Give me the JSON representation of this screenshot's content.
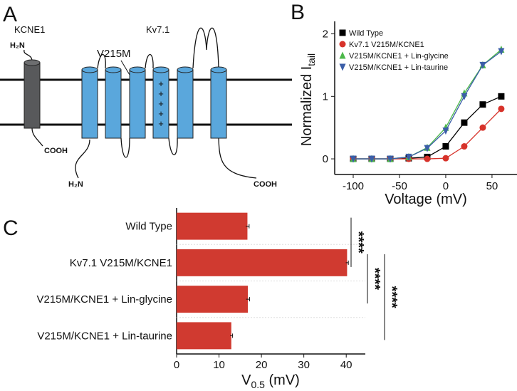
{
  "panels": [
    "A",
    "B",
    "C"
  ],
  "diagram": {
    "subunits": [
      "KCNE1",
      "Kv7.1"
    ],
    "mutation": "V215M",
    "n_terminus": [
      "H₂N",
      "H₂N"
    ],
    "c_terminus": [
      "COOH",
      "COOH"
    ],
    "charges": [
      "+",
      "+",
      "+",
      "+",
      "+"
    ]
  },
  "chart_data": [
    {
      "type": "line",
      "x_label": "Voltage (mV)",
      "y_label": "Normalized I",
      "y_label_sub": "tail",
      "x": [
        -100,
        -80,
        -60,
        -40,
        -20,
        0,
        20,
        40,
        60
      ],
      "xlim": [
        -120,
        77
      ],
      "ylim": [
        -0.25,
        2.2
      ],
      "xticks": [
        -100,
        -50,
        0,
        50
      ],
      "yticks": [
        0,
        1,
        2
      ],
      "legend": "upper left",
      "series": [
        {
          "name": "Wild Type",
          "color": "#000000",
          "marker": "square",
          "values": [
            0,
            0,
            0,
            0.01,
            0.03,
            0.2,
            0.58,
            0.87,
            1.0
          ]
        },
        {
          "name": "Kv7.1 V215M/KCNE1",
          "color": "#d7322a",
          "marker": "circle",
          "values": [
            0,
            0,
            0,
            0,
            0,
            0.01,
            0.2,
            0.5,
            0.8
          ]
        },
        {
          "name": "V215M/KCNE1 + Lin-glycine",
          "color": "#4cb84a",
          "marker": "triangle-up",
          "values": [
            0,
            0,
            0,
            0.03,
            0.18,
            0.5,
            1.05,
            1.5,
            1.75
          ]
        },
        {
          "name": "V215M/KCNE1 + Lin-taurine",
          "color": "#3b5ea8",
          "marker": "triangle-down",
          "values": [
            0,
            0,
            0,
            0.03,
            0.17,
            0.45,
            1.0,
            1.5,
            1.72
          ]
        }
      ]
    },
    {
      "type": "bar",
      "orientation": "horizontal",
      "x_label": "V",
      "x_label_sub": "0.5",
      "x_label_unit": " (mV)",
      "categories": [
        "Wild Type",
        "Kv7.1 V215M/KCNE1",
        "V215M/KCNE1 + Lin-glycine",
        "V215M/KCNE1 + Lin-taurine"
      ],
      "values": [
        16.7,
        40.2,
        16.8,
        12.9
      ],
      "errors": [
        0.4,
        0.3,
        0.4,
        0.3
      ],
      "color": "#d03a30",
      "xlim": [
        0,
        44.5
      ],
      "xticks": [
        0,
        10,
        20,
        30,
        40
      ],
      "annotations": [
        "****",
        "****",
        "****"
      ]
    }
  ]
}
